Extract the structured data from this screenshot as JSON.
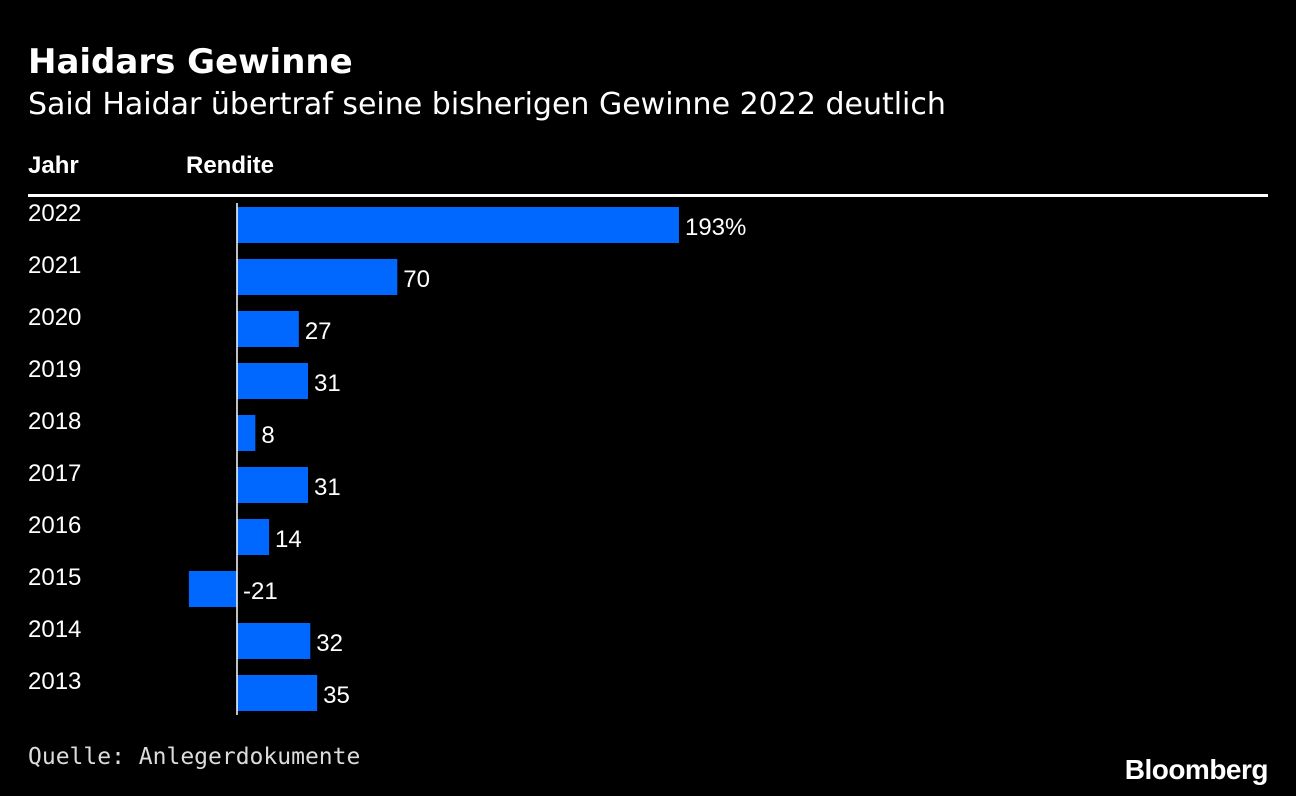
{
  "header": {
    "title": "Haidars Gewinne",
    "subtitle": "Said Haidar übertraf seine bisherigen Gewinne 2022 deutlich"
  },
  "table": {
    "col_year": "Jahr",
    "col_return": "Rendite"
  },
  "chart_data": {
    "type": "bar",
    "orientation": "horizontal",
    "title": "Haidars Gewinne",
    "subtitle": "Said Haidar übertraf seine bisherigen Gewinne 2022 deutlich",
    "categories": [
      "2022",
      "2021",
      "2020",
      "2019",
      "2018",
      "2017",
      "2016",
      "2015",
      "2014",
      "2013"
    ],
    "values": [
      193,
      70,
      27,
      31,
      8,
      31,
      14,
      -21,
      32,
      35
    ],
    "value_labels": [
      "193%",
      "70",
      "27",
      "31",
      "8",
      "31",
      "14",
      "-21",
      "32",
      "35"
    ],
    "unit": "%",
    "bar_color": "#0068ff",
    "grid": false
  },
  "footer": {
    "source": "Quelle: Anlegerdokumente",
    "brand": "Bloomberg"
  },
  "colors": {
    "background": "#000000",
    "text": "#ffffff",
    "bar": "#0068ff"
  }
}
